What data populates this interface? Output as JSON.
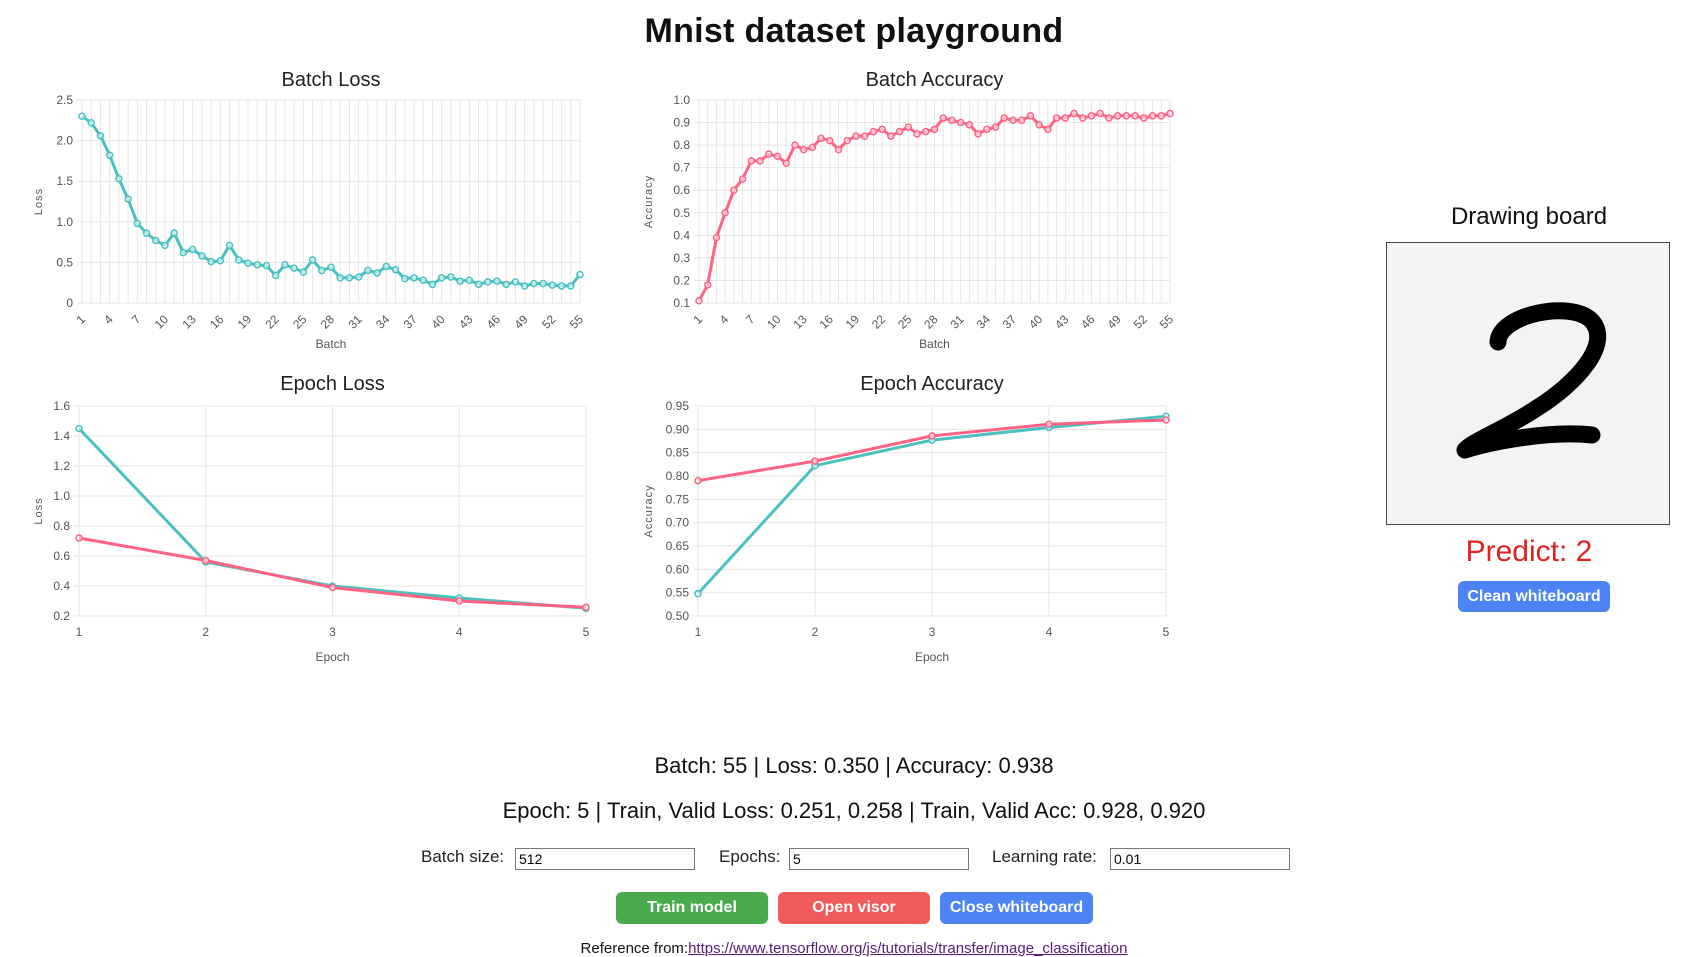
{
  "page": {
    "title": "Mnist dataset playground"
  },
  "colors": {
    "teal": "#4bc0c0",
    "pink": "#ff6384",
    "predict": "#e41f1f"
  },
  "chart_data": [
    {
      "id": "batch-loss",
      "type": "line",
      "title": "Batch Loss",
      "xlabel": "Batch",
      "ylabel": "Loss",
      "ylim": [
        0,
        2.5
      ],
      "yticks": [
        0,
        0.5,
        1.0,
        1.5,
        2.0,
        2.5
      ],
      "ytick_labels": [
        "0",
        "0.5",
        "1.0",
        "1.5",
        "2.0",
        "2.5"
      ],
      "x": [
        1,
        2,
        3,
        4,
        5,
        6,
        7,
        8,
        9,
        10,
        11,
        12,
        13,
        14,
        15,
        16,
        17,
        18,
        19,
        20,
        21,
        22,
        23,
        24,
        25,
        26,
        27,
        28,
        29,
        30,
        31,
        32,
        33,
        34,
        35,
        36,
        37,
        38,
        39,
        40,
        41,
        42,
        43,
        44,
        45,
        46,
        47,
        48,
        49,
        50,
        51,
        52,
        53,
        54,
        55
      ],
      "xtick_labels": [
        "1",
        "4",
        "7",
        "10",
        "13",
        "16",
        "19",
        "22",
        "25",
        "28",
        "31",
        "34",
        "37",
        "40",
        "43",
        "46",
        "49",
        "52",
        "55"
      ],
      "grid": true,
      "series": [
        {
          "color": "#4bc0c0",
          "values": [
            2.3,
            2.22,
            2.06,
            1.82,
            1.53,
            1.28,
            0.98,
            0.86,
            0.77,
            0.71,
            0.86,
            0.62,
            0.66,
            0.58,
            0.51,
            0.52,
            0.71,
            0.53,
            0.49,
            0.47,
            0.46,
            0.34,
            0.47,
            0.43,
            0.38,
            0.53,
            0.4,
            0.44,
            0.31,
            0.31,
            0.32,
            0.4,
            0.37,
            0.45,
            0.41,
            0.3,
            0.31,
            0.28,
            0.23,
            0.31,
            0.32,
            0.27,
            0.28,
            0.23,
            0.26,
            0.27,
            0.23,
            0.26,
            0.21,
            0.24,
            0.24,
            0.22,
            0.21,
            0.21,
            0.35
          ]
        }
      ]
    },
    {
      "id": "batch-accuracy",
      "type": "line",
      "title": "Batch Accuracy",
      "xlabel": "Batch",
      "ylabel": "Accuracy",
      "ylim": [
        0.1,
        1.0
      ],
      "yticks": [
        0.1,
        0.2,
        0.3,
        0.4,
        0.5,
        0.6,
        0.7,
        0.8,
        0.9,
        1.0
      ],
      "ytick_labels": [
        "0.1",
        "0.2",
        "0.3",
        "0.4",
        "0.5",
        "0.6",
        "0.7",
        "0.8",
        "0.9",
        "1.0"
      ],
      "x": [
        1,
        2,
        3,
        4,
        5,
        6,
        7,
        8,
        9,
        10,
        11,
        12,
        13,
        14,
        15,
        16,
        17,
        18,
        19,
        20,
        21,
        22,
        23,
        24,
        25,
        26,
        27,
        28,
        29,
        30,
        31,
        32,
        33,
        34,
        35,
        36,
        37,
        38,
        39,
        40,
        41,
        42,
        43,
        44,
        45,
        46,
        47,
        48,
        49,
        50,
        51,
        52,
        53,
        54,
        55
      ],
      "xtick_labels": [
        "1",
        "4",
        "7",
        "10",
        "13",
        "16",
        "19",
        "22",
        "25",
        "28",
        "31",
        "34",
        "37",
        "40",
        "43",
        "46",
        "49",
        "52",
        "55"
      ],
      "grid": true,
      "series": [
        {
          "color": "#ff6384",
          "values": [
            0.11,
            0.18,
            0.39,
            0.5,
            0.6,
            0.65,
            0.73,
            0.73,
            0.76,
            0.75,
            0.72,
            0.8,
            0.78,
            0.79,
            0.83,
            0.82,
            0.78,
            0.82,
            0.84,
            0.84,
            0.86,
            0.87,
            0.84,
            0.86,
            0.88,
            0.85,
            0.86,
            0.87,
            0.92,
            0.91,
            0.9,
            0.89,
            0.85,
            0.87,
            0.88,
            0.92,
            0.91,
            0.91,
            0.93,
            0.89,
            0.87,
            0.92,
            0.92,
            0.94,
            0.92,
            0.93,
            0.94,
            0.92,
            0.93,
            0.93,
            0.93,
            0.92,
            0.93,
            0.93,
            0.94
          ]
        }
      ]
    },
    {
      "id": "epoch-loss",
      "type": "line",
      "title": "Epoch Loss",
      "xlabel": "Epoch",
      "ylabel": "Loss",
      "ylim": [
        0.2,
        1.6
      ],
      "yticks": [
        0.2,
        0.4,
        0.6,
        0.8,
        1.0,
        1.2,
        1.4,
        1.6
      ],
      "ytick_labels": [
        "0.2",
        "0.4",
        "0.6",
        "0.8",
        "1.0",
        "1.2",
        "1.4",
        "1.6"
      ],
      "x": [
        1,
        2,
        3,
        4,
        5
      ],
      "xtick_labels": [
        "1",
        "2",
        "3",
        "4",
        "5"
      ],
      "grid": true,
      "series": [
        {
          "color": "#4bc0c0",
          "values": [
            1.45,
            0.56,
            0.4,
            0.32,
            0.251
          ]
        },
        {
          "color": "#ff6384",
          "values": [
            0.72,
            0.57,
            0.39,
            0.3,
            0.258
          ]
        }
      ]
    },
    {
      "id": "epoch-accuracy",
      "type": "line",
      "title": "Epoch Accuracy",
      "xlabel": "Epoch",
      "ylabel": "Accuracy",
      "ylim": [
        0.5,
        0.95
      ],
      "yticks": [
        0.5,
        0.55,
        0.6,
        0.65,
        0.7,
        0.75,
        0.8,
        0.85,
        0.9,
        0.95
      ],
      "ytick_labels": [
        "0.50",
        "0.55",
        "0.60",
        "0.65",
        "0.70",
        "0.75",
        "0.80",
        "0.85",
        "0.90",
        "0.95"
      ],
      "x": [
        1,
        2,
        3,
        4,
        5
      ],
      "xtick_labels": [
        "1",
        "2",
        "3",
        "4",
        "5"
      ],
      "grid": true,
      "series": [
        {
          "color": "#4bc0c0",
          "values": [
            0.548,
            0.822,
            0.877,
            0.904,
            0.928
          ]
        },
        {
          "color": "#ff6384",
          "values": [
            0.79,
            0.832,
            0.886,
            0.911,
            0.92
          ]
        }
      ]
    }
  ],
  "drawing": {
    "title": "Drawing board",
    "digit_glyph": "handwritten-2",
    "predict_text": "Predict: 2",
    "clean_button": "Clean whiteboard"
  },
  "status": {
    "batch_line": "Batch: 55 | Loss: 0.350 | Accuracy: 0.938",
    "epoch_line": "Epoch: 5 | Train, Valid Loss: 0.251, 0.258 | Train, Valid Acc: 0.928, 0.920"
  },
  "params": {
    "batch_size_label": "Batch size:",
    "batch_size_value": "512",
    "epochs_label": "Epochs:",
    "epochs_value": "5",
    "learning_rate_label": "Learning rate:",
    "learning_rate_value": "0.01"
  },
  "buttons": {
    "train": "Train model",
    "visor": "Open visor",
    "close": "Close whiteboard"
  },
  "reference": {
    "prefix": "Reference from:",
    "link": "https://www.tensorflow.org/js/tutorials/transfer/image_classification"
  }
}
